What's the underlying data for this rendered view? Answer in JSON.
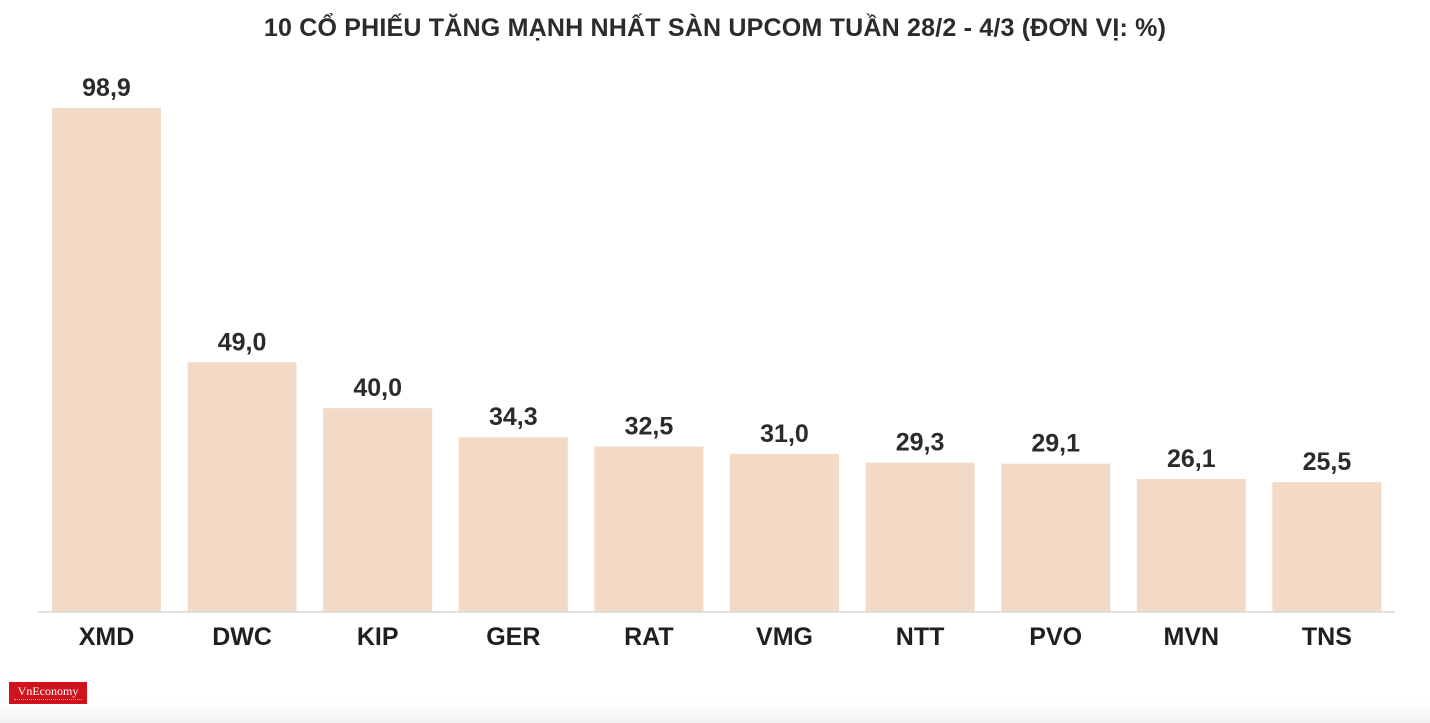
{
  "chart_data": {
    "type": "bar",
    "title": "10 CỔ PHIẾU TĂNG MẠNH NHẤT SÀN UPCOM TUẦN 28/2 - 4/3 (ĐƠN VỊ: %)",
    "categories": [
      "XMD",
      "DWC",
      "KIP",
      "GER",
      "RAT",
      "VMG",
      "NTT",
      "PVO",
      "MVN",
      "TNS"
    ],
    "values": [
      98.9,
      49.0,
      40.0,
      34.3,
      32.5,
      31.0,
      29.3,
      29.1,
      26.1,
      25.5
    ],
    "value_labels": [
      "98,9",
      "49,0",
      "40,0",
      "34,3",
      "32,5",
      "31,0",
      "29,3",
      "29,1",
      "26,1",
      "25,5"
    ],
    "xlabel": "",
    "ylabel": "",
    "ylim": [
      0,
      98.9
    ],
    "grid": false,
    "legend": "none",
    "colors": {
      "bar": "#f2dac6",
      "axis": "#d9d9d9",
      "text": "#2b2b2b"
    }
  },
  "brand": {
    "logo_text": "VnEconomy",
    "color": "#d0121b"
  }
}
